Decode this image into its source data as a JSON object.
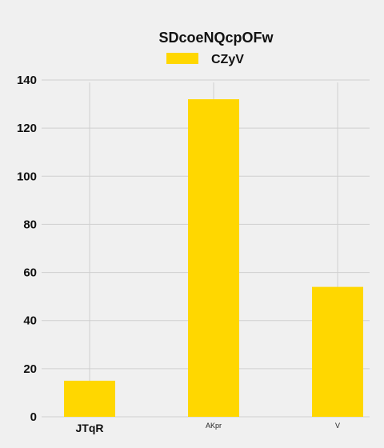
{
  "chart_data": {
    "type": "bar",
    "title": "SDcoeNQcpOFw",
    "xlabel": "",
    "ylabel": "",
    "categories": [
      "JTqR",
      "AKpr",
      "V"
    ],
    "series": [
      {
        "name": "CZyV",
        "values": [
          15,
          132,
          54
        ]
      }
    ],
    "ylim": [
      0,
      140
    ],
    "yticks": [
      "0",
      "20",
      "40",
      "60",
      "80",
      "100",
      "120",
      "140"
    ],
    "grid": true,
    "legend_position": "top-center",
    "bar_color": "#ffd700"
  }
}
